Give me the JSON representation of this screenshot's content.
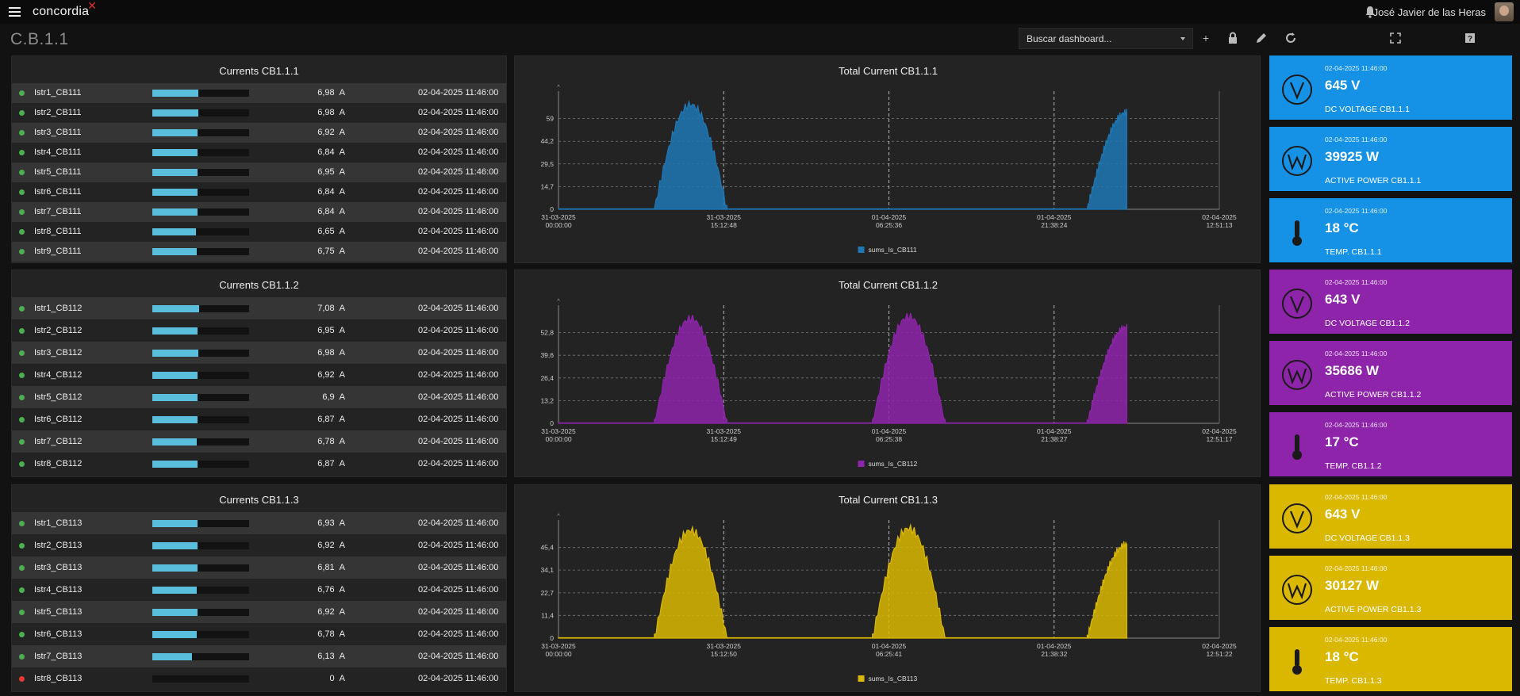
{
  "app": {
    "brand": "concordia",
    "brand_mark": "✕",
    "user": "José Javier de las Heras"
  },
  "page_title": "C.B.1.1",
  "toolbar": {
    "search_placeholder": "Buscar dashboard...",
    "add_label": "+"
  },
  "colors": {
    "blue": "#1592e6",
    "purple": "#8e24aa",
    "yellow": "#dbb800",
    "bar_fill": "#58bedb",
    "status_ok": "#4caf50",
    "status_error": "#e53935"
  },
  "groups": [
    {
      "title": "Currents CB1.1.1",
      "rows": [
        {
          "name": "Istr1_CB111",
          "value": "6,98",
          "unit": "A",
          "date": "02-04-2025 11:46:00",
          "level": 0.475,
          "status": "ok"
        },
        {
          "name": "Istr2_CB111",
          "value": "6,98",
          "unit": "A",
          "date": "02-04-2025 11:46:00",
          "level": 0.475,
          "status": "ok"
        },
        {
          "name": "Istr3_CB111",
          "value": "6,92",
          "unit": "A",
          "date": "02-04-2025 11:46:00",
          "level": 0.47,
          "status": "ok"
        },
        {
          "name": "Istr4_CB111",
          "value": "6,84",
          "unit": "A",
          "date": "02-04-2025 11:46:00",
          "level": 0.465,
          "status": "ok"
        },
        {
          "name": "Istr5_CB111",
          "value": "6,95",
          "unit": "A",
          "date": "02-04-2025 11:46:00",
          "level": 0.47,
          "status": "ok"
        },
        {
          "name": "Istr6_CB111",
          "value": "6,84",
          "unit": "A",
          "date": "02-04-2025 11:46:00",
          "level": 0.465,
          "status": "ok"
        },
        {
          "name": "Istr7_CB111",
          "value": "6,84",
          "unit": "A",
          "date": "02-04-2025 11:46:00",
          "level": 0.465,
          "status": "ok"
        },
        {
          "name": "Istr8_CB111",
          "value": "6,65",
          "unit": "A",
          "date": "02-04-2025 11:46:00",
          "level": 0.45,
          "status": "ok"
        },
        {
          "name": "Istr9_CB111",
          "value": "6,75",
          "unit": "A",
          "date": "02-04-2025 11:46:00",
          "level": 0.46,
          "status": "ok"
        }
      ]
    },
    {
      "title": "Currents CB1.1.2",
      "rows": [
        {
          "name": "Istr1_CB112",
          "value": "7,08",
          "unit": "A",
          "date": "02-04-2025 11:46:00",
          "level": 0.48,
          "status": "ok"
        },
        {
          "name": "Istr2_CB112",
          "value": "6,95",
          "unit": "A",
          "date": "02-04-2025 11:46:00",
          "level": 0.47,
          "status": "ok"
        },
        {
          "name": "Istr3_CB112",
          "value": "6,98",
          "unit": "A",
          "date": "02-04-2025 11:46:00",
          "level": 0.475,
          "status": "ok"
        },
        {
          "name": "Istr4_CB112",
          "value": "6,92",
          "unit": "A",
          "date": "02-04-2025 11:46:00",
          "level": 0.47,
          "status": "ok"
        },
        {
          "name": "Istr5_CB112",
          "value": "6,9",
          "unit": "A",
          "date": "02-04-2025 11:46:00",
          "level": 0.47,
          "status": "ok"
        },
        {
          "name": "Istr6_CB112",
          "value": "6,87",
          "unit": "A",
          "date": "02-04-2025 11:46:00",
          "level": 0.465,
          "status": "ok"
        },
        {
          "name": "Istr7_CB112",
          "value": "6,78",
          "unit": "A",
          "date": "02-04-2025 11:46:00",
          "level": 0.46,
          "status": "ok"
        },
        {
          "name": "Istr8_CB112",
          "value": "6,87",
          "unit": "A",
          "date": "02-04-2025 11:46:00",
          "level": 0.465,
          "status": "ok"
        }
      ]
    },
    {
      "title": "Currents CB1.1.3",
      "rows": [
        {
          "name": "Istr1_CB113",
          "value": "6,93",
          "unit": "A",
          "date": "02-04-2025 11:46:00",
          "level": 0.47,
          "status": "ok"
        },
        {
          "name": "Istr2_CB113",
          "value": "6,92",
          "unit": "A",
          "date": "02-04-2025 11:46:00",
          "level": 0.47,
          "status": "ok"
        },
        {
          "name": "Istr3_CB113",
          "value": "6,81",
          "unit": "A",
          "date": "02-04-2025 11:46:00",
          "level": 0.465,
          "status": "ok"
        },
        {
          "name": "Istr4_CB113",
          "value": "6,76",
          "unit": "A",
          "date": "02-04-2025 11:46:00",
          "level": 0.46,
          "status": "ok"
        },
        {
          "name": "Istr5_CB113",
          "value": "6,92",
          "unit": "A",
          "date": "02-04-2025 11:46:00",
          "level": 0.47,
          "status": "ok"
        },
        {
          "name": "Istr6_CB113",
          "value": "6,78",
          "unit": "A",
          "date": "02-04-2025 11:46:00",
          "level": 0.46,
          "status": "ok"
        },
        {
          "name": "Istr7_CB113",
          "value": "6,13",
          "unit": "A",
          "date": "02-04-2025 11:46:00",
          "level": 0.41,
          "status": "ok"
        },
        {
          "name": "Istr8_CB113",
          "value": "0",
          "unit": "A",
          "date": "02-04-2025 11:46:00",
          "level": 0,
          "status": "error"
        }
      ]
    }
  ],
  "charts": [
    {
      "title": "Total Current CB1.1.1",
      "legend": "sums_Is_CB111",
      "color": "#1f77b4",
      "y_ticks": [
        "0",
        "14,7",
        "29,5",
        "44,2",
        "59"
      ],
      "y_max": 73.7,
      "x_ticks": [
        [
          "31-03-2025",
          "00:00:00"
        ],
        [
          "31-03-2025",
          "15:12:48"
        ],
        [
          "01-04-2025",
          "06:25:36"
        ],
        [
          "01-04-2025",
          "21:38:24"
        ],
        [
          "02-04-2025",
          "12:51:13"
        ]
      ],
      "day_peaks": [
        68,
        0,
        63
      ]
    },
    {
      "title": "Total Current CB1.1.2",
      "legend": "sums_Is_CB112",
      "color": "#8e24aa",
      "y_ticks": [
        "0",
        "13,2",
        "26,4",
        "39,6",
        "52,8"
      ],
      "y_max": 66,
      "x_ticks": [
        [
          "31-03-2025",
          "00:00:00"
        ],
        [
          "31-03-2025",
          "15:12:49"
        ],
        [
          "01-04-2025",
          "06:25:38"
        ],
        [
          "01-04-2025",
          "21:38:27"
        ],
        [
          "02-04-2025",
          "12:51:17"
        ]
      ],
      "day_peaks": [
        61,
        62,
        56
      ]
    },
    {
      "title": "Total Current CB1.1.3",
      "legend": "sums_Is_CB113",
      "color": "#dbb800",
      "y_ticks": [
        "0",
        "11,4",
        "22,7",
        "34,1",
        "45,4"
      ],
      "y_max": 56.8,
      "x_ticks": [
        [
          "31-03-2025",
          "00:00:00"
        ],
        [
          "31-03-2025",
          "15:12:50"
        ],
        [
          "01-04-2025",
          "06:25:41"
        ],
        [
          "01-04-2025",
          "21:38:32"
        ],
        [
          "02-04-2025",
          "12:51:22"
        ]
      ],
      "day_peaks": [
        54,
        55,
        47
      ]
    }
  ],
  "chart_data": [
    {
      "type": "area",
      "title": "Total Current CB1.1.1",
      "series": [
        {
          "name": "sums_Is_CB111",
          "day_peaks": [
            68,
            0,
            63
          ]
        }
      ],
      "y_ticks": [
        0,
        14.7,
        29.5,
        44.2,
        59
      ],
      "x_ticks": [
        "31-03-2025 00:00:00",
        "31-03-2025 15:12:48",
        "01-04-2025 06:25:36",
        "01-04-2025 21:38:24",
        "02-04-2025 12:51:13"
      ]
    },
    {
      "type": "area",
      "title": "Total Current CB1.1.2",
      "series": [
        {
          "name": "sums_Is_CB112",
          "day_peaks": [
            61,
            62,
            56
          ]
        }
      ],
      "y_ticks": [
        0,
        13.2,
        26.4,
        39.6,
        52.8
      ],
      "x_ticks": [
        "31-03-2025 00:00:00",
        "31-03-2025 15:12:49",
        "01-04-2025 06:25:38",
        "01-04-2025 21:38:27",
        "02-04-2025 12:51:17"
      ]
    },
    {
      "type": "area",
      "title": "Total Current CB1.1.3",
      "series": [
        {
          "name": "sums_Is_CB113",
          "day_peaks": [
            54,
            55,
            47
          ]
        }
      ],
      "y_ticks": [
        0,
        11.4,
        22.7,
        34.1,
        45.4
      ],
      "x_ticks": [
        "31-03-2025 00:00:00",
        "31-03-2025 15:12:50",
        "01-04-2025 06:25:41",
        "01-04-2025 21:38:32",
        "02-04-2025 12:51:22"
      ]
    }
  ],
  "tiles": [
    {
      "date": "02-04-2025 11:46:00",
      "value": "645 V",
      "label": "DC VOLTAGE CB1.1.1",
      "icon": "voltage-icon",
      "color": "#1592e6"
    },
    {
      "date": "02-04-2025 11:46:00",
      "value": "39925 W",
      "label": "ACTIVE POWER CB1.1.1",
      "icon": "power-icon",
      "color": "#1592e6"
    },
    {
      "date": "02-04-2025 11:46:00",
      "value": "18 °C",
      "label": "TEMP. CB1.1.1",
      "icon": "thermometer-icon",
      "color": "#1592e6"
    },
    {
      "date": "02-04-2025 11:46:00",
      "value": "643 V",
      "label": "DC VOLTAGE CB1.1.2",
      "icon": "voltage-icon",
      "color": "#8e24aa"
    },
    {
      "date": "02-04-2025 11:46:00",
      "value": "35686 W",
      "label": "ACTIVE POWER CB1.1.2",
      "icon": "power-icon",
      "color": "#8e24aa"
    },
    {
      "date": "02-04-2025 11:46:00",
      "value": "17 °C",
      "label": "TEMP. CB1.1.2",
      "icon": "thermometer-icon",
      "color": "#8e24aa"
    },
    {
      "date": "02-04-2025 11:46:00",
      "value": "643 V",
      "label": "DC VOLTAGE CB1.1.3",
      "icon": "voltage-icon",
      "color": "#dbb800"
    },
    {
      "date": "02-04-2025 11:46:00",
      "value": "30127 W",
      "label": "ACTIVE POWER CB1.1.3",
      "icon": "power-icon",
      "color": "#dbb800"
    },
    {
      "date": "02-04-2025 11:46:00",
      "value": "18 °C",
      "label": "TEMP. CB1.1.3",
      "icon": "thermometer-icon",
      "color": "#dbb800"
    }
  ]
}
